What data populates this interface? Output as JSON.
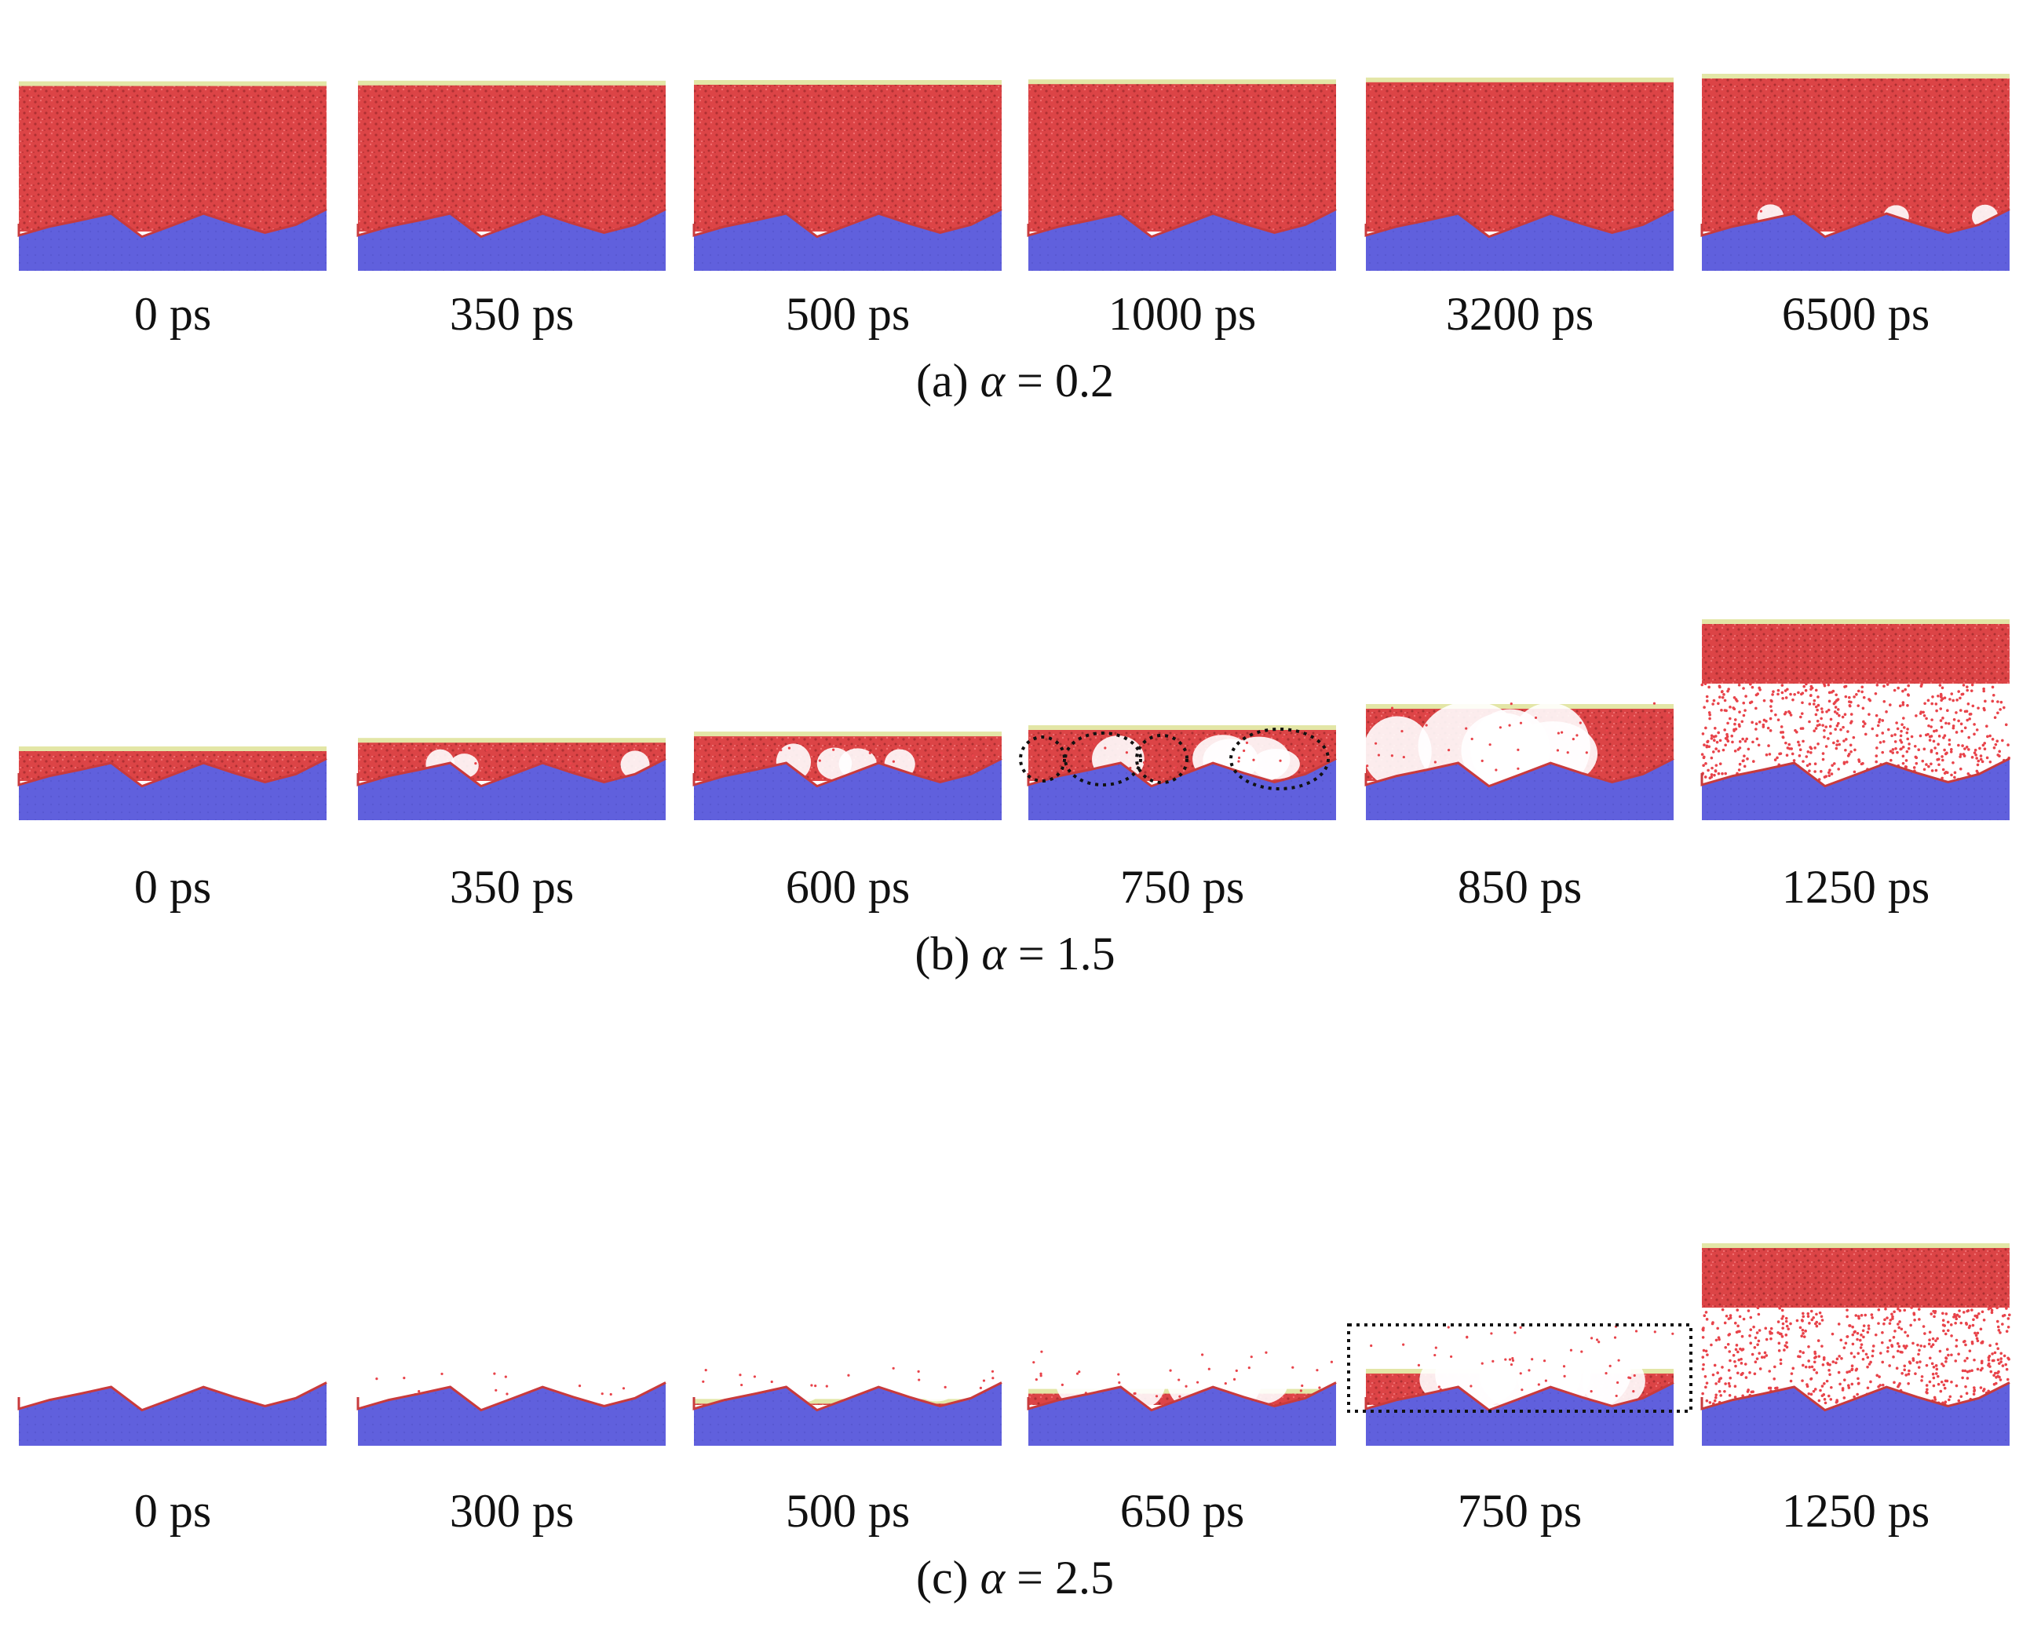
{
  "colors": {
    "liquid": "#dc4446",
    "substrate": "#6060dd",
    "top_plate": "#e3e6a6",
    "vapor_particle": "#e8434a",
    "marker": "#111111",
    "background": "#ffffff"
  },
  "rows": [
    {
      "caption": {
        "prefix": "(a) ",
        "symbol": "α",
        "suffix": " = 0.2"
      },
      "panels": [
        {
          "time": "0 ps",
          "cavitation": 0,
          "expansion": 0
        },
        {
          "time": "350 ps",
          "cavitation": 0,
          "expansion": 0.01
        },
        {
          "time": "500 ps",
          "cavitation": 0,
          "expansion": 0.02
        },
        {
          "time": "1000 ps",
          "cavitation": 0,
          "expansion": 0.03
        },
        {
          "time": "3200 ps",
          "cavitation": 0,
          "expansion": 0.06
        },
        {
          "time": "6500 ps",
          "cavitation": 0.02,
          "expansion": 0.12
        }
      ]
    },
    {
      "caption": {
        "prefix": "(b) ",
        "symbol": "α",
        "suffix": " = 1.5"
      },
      "panels": [
        {
          "time": "0 ps",
          "cavitation": 0,
          "expansion": 0
        },
        {
          "time": "350 ps",
          "cavitation": 0.05,
          "expansion": 0.04
        },
        {
          "time": "600 ps",
          "cavitation": 0.1,
          "expansion": 0.07
        },
        {
          "time": "750 ps",
          "cavitation": 0.25,
          "expansion": 0.1,
          "marker": "circles"
        },
        {
          "time": "850 ps",
          "cavitation": 0.55,
          "expansion": 0.2
        },
        {
          "time": "1250 ps",
          "cavitation": 1.0,
          "expansion": 0.6
        }
      ]
    },
    {
      "caption": {
        "prefix": "(c) ",
        "symbol": "α",
        "suffix": " = 2.5"
      },
      "panels": [
        {
          "time": "0 ps",
          "cavitation": 0,
          "expansion": 0
        },
        {
          "time": "300 ps",
          "cavitation": 0.05,
          "expansion": 0.04
        },
        {
          "time": "500 ps",
          "cavitation": 0.12,
          "expansion": 0.08
        },
        {
          "time": "650 ps",
          "cavitation": 0.3,
          "expansion": 0.12
        },
        {
          "time": "750 ps",
          "cavitation": 0.55,
          "expansion": 0.2,
          "marker": "rectangle"
        },
        {
          "time": "1250 ps",
          "cavitation": 1.0,
          "expansion": 0.7
        }
      ]
    }
  ]
}
